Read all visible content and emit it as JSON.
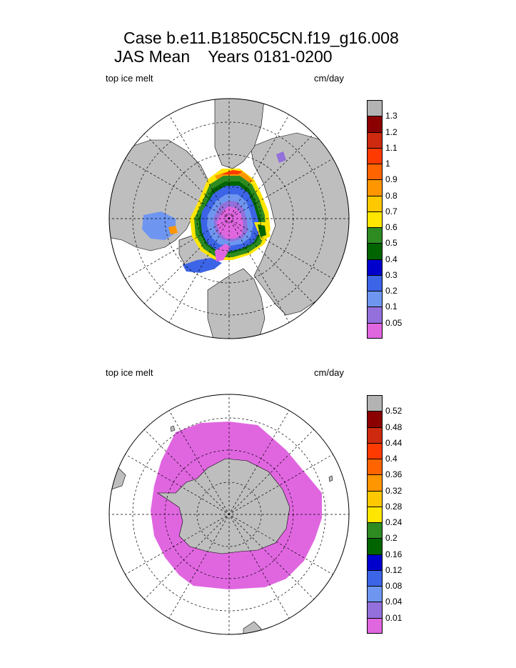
{
  "title": {
    "line1": "Case b.e11.B1850C5CN.f19_g16.008",
    "line2": "JAS Mean    Years 0181-0200"
  },
  "panels": [
    {
      "hemisphere": "north",
      "field_label": "top ice melt",
      "units_label": "cm/day",
      "colorbar": {
        "tick_labels": [
          "1.3",
          "1.2",
          "1.1",
          "1",
          "0.9",
          "0.8",
          "0.7",
          "0.6",
          "0.5",
          "0.4",
          "0.3",
          "0.2",
          "0.1",
          "0.05"
        ],
        "colors": [
          "#b3b3b3",
          "#8b0000",
          "#cd2a10",
          "#ff3a00",
          "#ff6400",
          "#ff9600",
          "#ffc800",
          "#ffe600",
          "#2e8b22",
          "#006400",
          "#0000cd",
          "#3c64e6",
          "#6e96f0",
          "#9370db",
          "#e066e0"
        ]
      }
    },
    {
      "hemisphere": "south",
      "field_label": "top ice melt",
      "units_label": "cm/day",
      "colorbar": {
        "tick_labels": [
          "0.52",
          "0.48",
          "0.44",
          "0.4",
          "0.36",
          "0.32",
          "0.28",
          "0.24",
          "0.2",
          "0.16",
          "0.12",
          "0.08",
          "0.04",
          "0.01"
        ],
        "colors": [
          "#b3b3b3",
          "#8b0000",
          "#cd2a10",
          "#ff3a00",
          "#ff6400",
          "#ff9600",
          "#ffc800",
          "#ffe600",
          "#2e8b22",
          "#006400",
          "#0000cd",
          "#3c64e6",
          "#6e96f0",
          "#9370db",
          "#e066e0"
        ]
      }
    }
  ],
  "map_colors": {
    "land": "#bebebe",
    "ocean": "#ffffff"
  }
}
